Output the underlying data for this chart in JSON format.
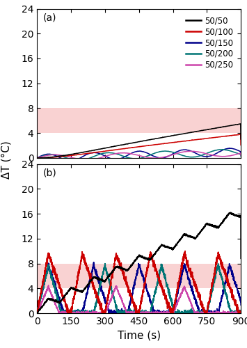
{
  "xlim": [
    0,
    900
  ],
  "ylim_a": [
    0,
    24
  ],
  "ylim_b": [
    0,
    24
  ],
  "yticks": [
    0,
    4,
    8,
    12,
    16,
    20,
    24
  ],
  "xticks": [
    0,
    150,
    300,
    450,
    600,
    750,
    900
  ],
  "xlabel": "Time (s)",
  "ylabel": "ΔT (°C)",
  "shade_low": 4,
  "shade_high": 8,
  "shade_color": "#f08080",
  "shade_alpha": 0.35,
  "colors": {
    "50/50": "#000000",
    "50/100": "#cc0000",
    "50/150": "#00008b",
    "50/200": "#007575",
    "50/250": "#cc44aa"
  },
  "legend_labels": [
    "50/50",
    "50/100",
    "50/150",
    "50/200",
    "50/250"
  ],
  "label_a": "(a)",
  "label_b": "(b)",
  "linewidth": 1.1
}
